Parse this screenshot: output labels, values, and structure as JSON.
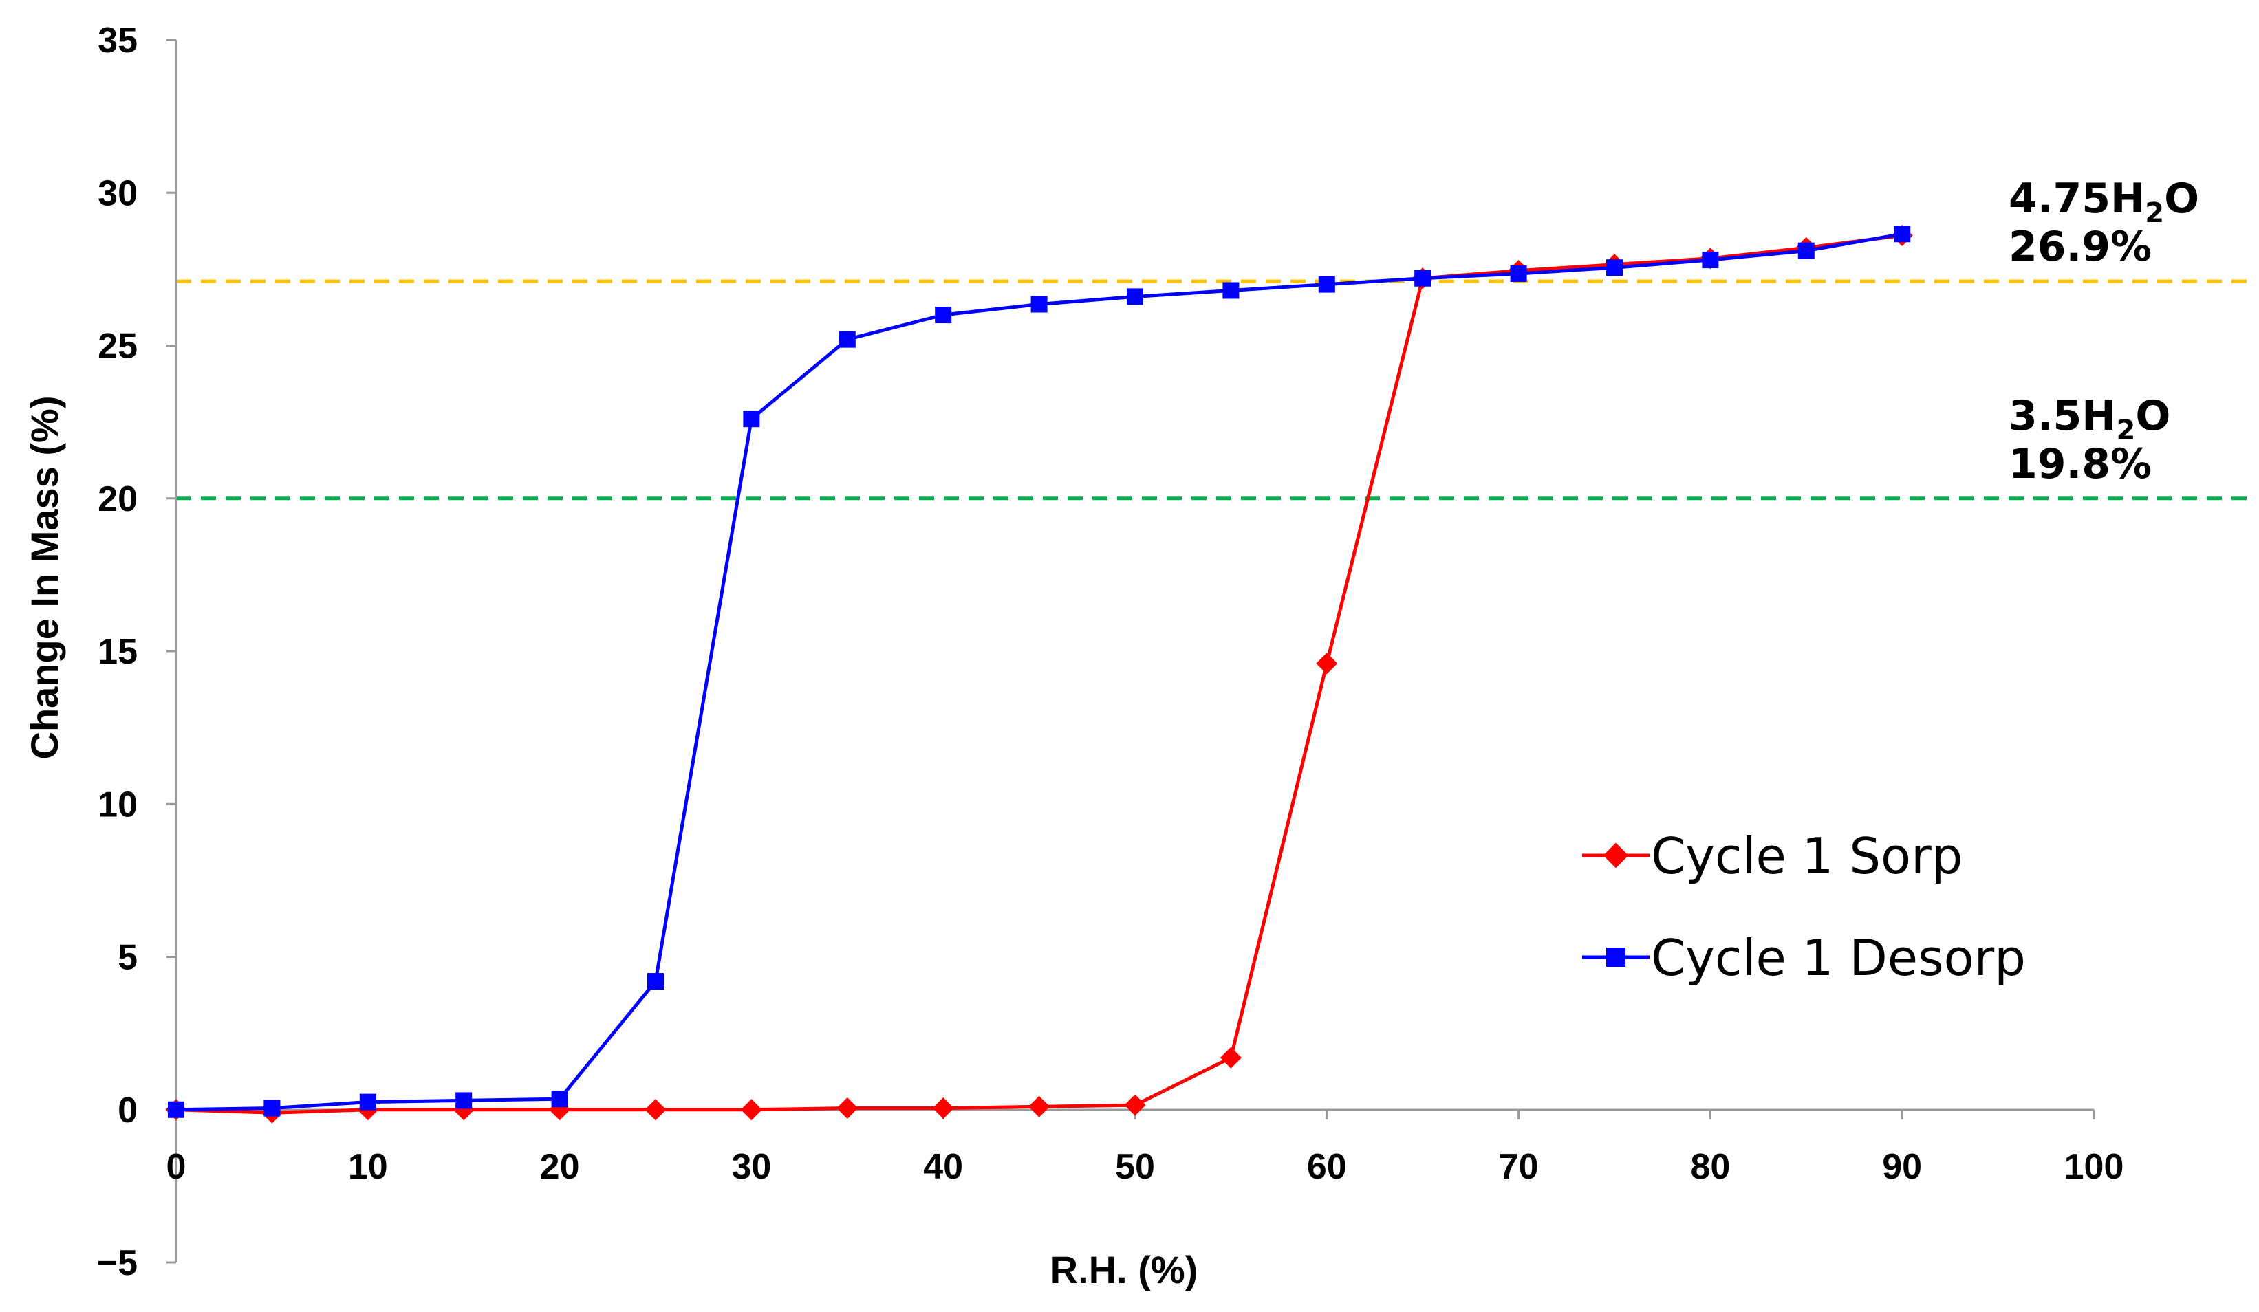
{
  "chart_data": {
    "type": "line",
    "title": "",
    "xlabel": "R.H. (%)",
    "ylabel": "Change In Mass (%)",
    "xlim": [
      0,
      100
    ],
    "ylim": [
      -5,
      35
    ],
    "xticks": [
      0,
      10,
      20,
      30,
      40,
      50,
      60,
      70,
      80,
      90,
      100
    ],
    "yticks": [
      -5,
      0,
      5,
      10,
      15,
      20,
      25,
      30,
      35
    ],
    "xtick_labels": [
      "0",
      "10",
      "20",
      "30",
      "40",
      "50",
      "60",
      "70",
      "80",
      "90",
      "100"
    ],
    "ytick_labels": [
      "−5",
      "0",
      "5",
      "10",
      "15",
      "20",
      "25",
      "30",
      "35"
    ],
    "grid": false,
    "legend_position": "right",
    "series": [
      {
        "name": "Cycle 1 Sorp",
        "color": "#ff0000",
        "marker": "diamond",
        "x": [
          0,
          5,
          10,
          15,
          20,
          25,
          30,
          35,
          40,
          45,
          50,
          55,
          60,
          65,
          70,
          75,
          80,
          85,
          90
        ],
        "y": [
          0,
          -0.1,
          0,
          0,
          0,
          0,
          0,
          0.05,
          0.05,
          0.1,
          0.15,
          1.7,
          14.6,
          27.2,
          27.45,
          27.65,
          27.85,
          28.2,
          28.6
        ]
      },
      {
        "name": "Cycle 1 Desorp",
        "color": "#0000ff",
        "marker": "square",
        "x": [
          0,
          5,
          10,
          15,
          20,
          25,
          30,
          35,
          40,
          45,
          50,
          55,
          60,
          65,
          70,
          75,
          80,
          85,
          90
        ],
        "y": [
          0,
          0.05,
          0.25,
          0.3,
          0.35,
          4.2,
          22.6,
          25.2,
          26.0,
          26.35,
          26.6,
          26.8,
          27.0,
          27.2,
          27.35,
          27.55,
          27.8,
          28.1,
          28.65
        ]
      }
    ],
    "reference_lines": [
      {
        "y": 27.1,
        "color": "#ffc000",
        "style": "dashed",
        "label_main": "4.75H",
        "label_sub": "2",
        "label_tail": "O",
        "label_pct": "26.9%"
      },
      {
        "y": 20.0,
        "color": "#00b050",
        "style": "dashed",
        "label_main": "3.5H",
        "label_sub": "2",
        "label_tail": "O",
        "label_pct": "19.8%"
      }
    ]
  }
}
